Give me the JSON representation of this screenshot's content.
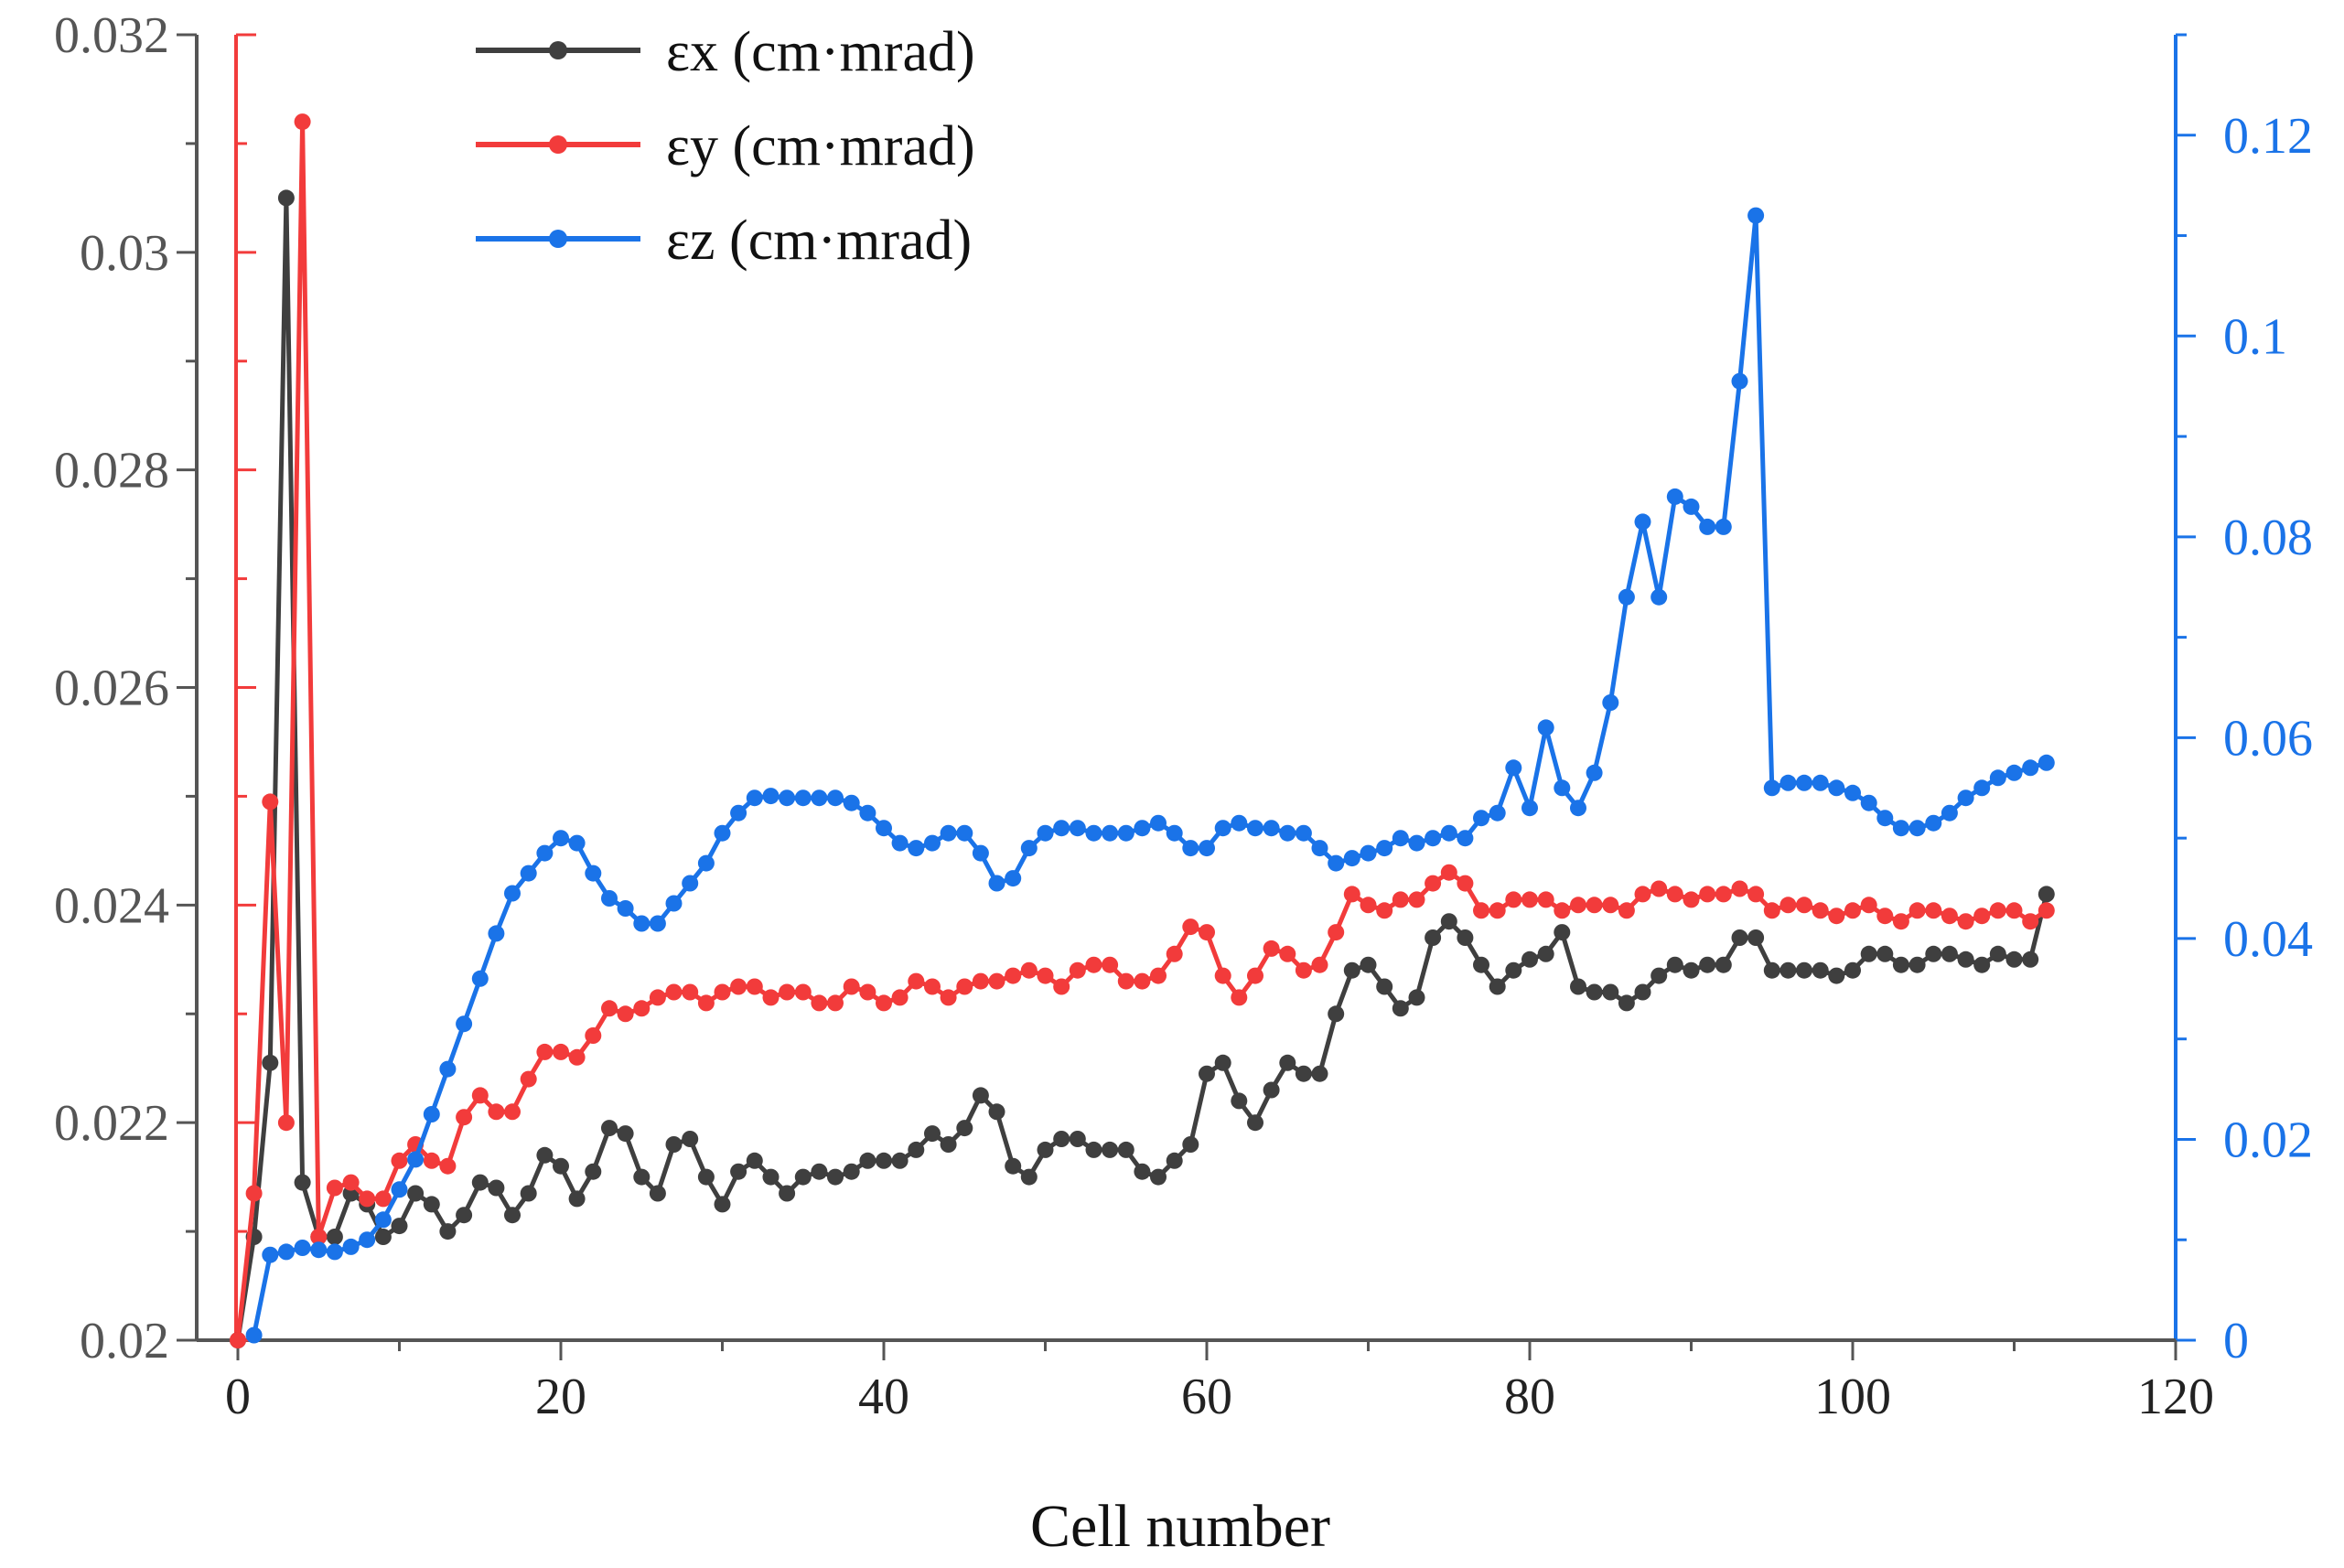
{
  "chart_data": {
    "type": "line",
    "xlabel": "Cell number",
    "xlim": [
      0,
      120
    ],
    "ylim_left": [
      0.02,
      0.032
    ],
    "ylim_right": [
      0,
      0.13
    ],
    "x_ticks": [
      "0",
      "20",
      "40",
      "60",
      "80",
      "100",
      "120"
    ],
    "y_left_ticks": [
      "0.02",
      "0.022",
      "0.024",
      "0.026",
      "0.028",
      "0.03",
      "0.032"
    ],
    "y_right_ticks": [
      "0",
      "0.02",
      "0.04",
      "0.06",
      "0.08",
      "0.1",
      "0.12"
    ],
    "legend_position": "top-left",
    "colors": {
      "ex": "#3f3f3f",
      "ey": "#f23b3b",
      "ez": "#1a73e8",
      "left_axis": "#f23b3b",
      "right_axis": "#1a73e8",
      "frame": "#555555"
    },
    "series": [
      {
        "key": "ex",
        "name": "εx (cm·mrad)",
        "axis": "left",
        "x": [
          0,
          1,
          2,
          3,
          4,
          5,
          6,
          7,
          8,
          9,
          10,
          11,
          12,
          13,
          14,
          15,
          16,
          17,
          18,
          19,
          20,
          21,
          22,
          23,
          24,
          25,
          26,
          27,
          28,
          29,
          30,
          31,
          32,
          33,
          34,
          35,
          36,
          37,
          38,
          39,
          40,
          41,
          42,
          43,
          44,
          45,
          46,
          47,
          48,
          49,
          50,
          51,
          52,
          53,
          54,
          55,
          56,
          57,
          58,
          59,
          60,
          61,
          62,
          63,
          64,
          65,
          66,
          67,
          68,
          69,
          70,
          71,
          72,
          73,
          74,
          75,
          76,
          77,
          78,
          79,
          80,
          81,
          82,
          83,
          84,
          85,
          86,
          87,
          88,
          89,
          90,
          91,
          92,
          93,
          94,
          95,
          96,
          97,
          98,
          99,
          100,
          101,
          102,
          103,
          104,
          105,
          106,
          107,
          108,
          109,
          110,
          111,
          112
        ],
        "values": [
          0.02,
          0.02095,
          0.02255,
          0.0305,
          0.02145,
          0.02095,
          0.02095,
          0.02135,
          0.02125,
          0.02095,
          0.02105,
          0.02135,
          0.02125,
          0.021,
          0.02115,
          0.02145,
          0.0214,
          0.02115,
          0.02135,
          0.0217,
          0.0216,
          0.0213,
          0.02155,
          0.02195,
          0.0219,
          0.0215,
          0.02135,
          0.0218,
          0.02185,
          0.0215,
          0.02125,
          0.02155,
          0.02165,
          0.0215,
          0.02135,
          0.0215,
          0.02155,
          0.0215,
          0.02155,
          0.02165,
          0.02165,
          0.02165,
          0.02175,
          0.0219,
          0.0218,
          0.02195,
          0.02225,
          0.0221,
          0.0216,
          0.0215,
          0.02175,
          0.02185,
          0.02185,
          0.02175,
          0.02175,
          0.02175,
          0.02155,
          0.0215,
          0.02165,
          0.0218,
          0.02245,
          0.02255,
          0.0222,
          0.022,
          0.0223,
          0.02255,
          0.02245,
          0.02245,
          0.023,
          0.0234,
          0.02345,
          0.02325,
          0.02305,
          0.02315,
          0.0237,
          0.02385,
          0.0237,
          0.02345,
          0.02325,
          0.0234,
          0.0235,
          0.02355,
          0.02375,
          0.02325,
          0.0232,
          0.0232,
          0.0231,
          0.0232,
          0.02335,
          0.02345,
          0.0234,
          0.02345,
          0.02345,
          0.0237,
          0.0237,
          0.0234,
          0.0234,
          0.0234,
          0.0234,
          0.02335,
          0.0234,
          0.02355,
          0.02355,
          0.02345,
          0.02345,
          0.02355,
          0.02355,
          0.0235,
          0.02345,
          0.02355,
          0.0235,
          0.0235,
          0.0241
        ]
      },
      {
        "key": "ey",
        "name": "εy (cm·mrad)",
        "axis": "left",
        "x": [
          0,
          1,
          2,
          3,
          4,
          5,
          6,
          7,
          8,
          9,
          10,
          11,
          12,
          13,
          14,
          15,
          16,
          17,
          18,
          19,
          20,
          21,
          22,
          23,
          24,
          25,
          26,
          27,
          28,
          29,
          30,
          31,
          32,
          33,
          34,
          35,
          36,
          37,
          38,
          39,
          40,
          41,
          42,
          43,
          44,
          45,
          46,
          47,
          48,
          49,
          50,
          51,
          52,
          53,
          54,
          55,
          56,
          57,
          58,
          59,
          60,
          61,
          62,
          63,
          64,
          65,
          66,
          67,
          68,
          69,
          70,
          71,
          72,
          73,
          74,
          75,
          76,
          77,
          78,
          79,
          80,
          81,
          82,
          83,
          84,
          85,
          86,
          87,
          88,
          89,
          90,
          91,
          92,
          93,
          94,
          95,
          96,
          97,
          98,
          99,
          100,
          101,
          102,
          103,
          104,
          105,
          106,
          107,
          108,
          109,
          110,
          111,
          112
        ],
        "values": [
          0.02,
          0.02135,
          0.02495,
          0.022,
          0.0312,
          0.02095,
          0.0214,
          0.02145,
          0.0213,
          0.0213,
          0.02165,
          0.0218,
          0.02165,
          0.0216,
          0.02205,
          0.02225,
          0.0221,
          0.0221,
          0.0224,
          0.02265,
          0.02265,
          0.0226,
          0.0228,
          0.02305,
          0.023,
          0.02305,
          0.02315,
          0.0232,
          0.0232,
          0.0231,
          0.0232,
          0.02325,
          0.02325,
          0.02315,
          0.0232,
          0.0232,
          0.0231,
          0.0231,
          0.02325,
          0.0232,
          0.0231,
          0.02315,
          0.0233,
          0.02325,
          0.02315,
          0.02325,
          0.0233,
          0.0233,
          0.02335,
          0.0234,
          0.02335,
          0.02325,
          0.0234,
          0.02345,
          0.02345,
          0.0233,
          0.0233,
          0.02335,
          0.02355,
          0.0238,
          0.02375,
          0.02335,
          0.02315,
          0.02335,
          0.0236,
          0.02355,
          0.0234,
          0.02345,
          0.02375,
          0.0241,
          0.024,
          0.02395,
          0.02405,
          0.02405,
          0.0242,
          0.0243,
          0.0242,
          0.02395,
          0.02395,
          0.02405,
          0.02405,
          0.02405,
          0.02395,
          0.024,
          0.024,
          0.024,
          0.02395,
          0.0241,
          0.02415,
          0.0241,
          0.02405,
          0.0241,
          0.0241,
          0.02415,
          0.0241,
          0.02395,
          0.024,
          0.024,
          0.02395,
          0.0239,
          0.02395,
          0.024,
          0.0239,
          0.02385,
          0.02395,
          0.02395,
          0.0239,
          0.02385,
          0.0239,
          0.02395,
          0.02395,
          0.02385,
          0.02395
        ]
      },
      {
        "key": "ez",
        "name": "εz (cm·mrad)",
        "axis": "right",
        "x": [
          1,
          2,
          3,
          4,
          5,
          6,
          7,
          8,
          9,
          10,
          11,
          12,
          13,
          14,
          15,
          16,
          17,
          18,
          19,
          20,
          21,
          22,
          23,
          24,
          25,
          26,
          27,
          28,
          29,
          30,
          31,
          32,
          33,
          34,
          35,
          36,
          37,
          38,
          39,
          40,
          41,
          42,
          43,
          44,
          45,
          46,
          47,
          48,
          49,
          50,
          51,
          52,
          53,
          54,
          55,
          56,
          57,
          58,
          59,
          60,
          61,
          62,
          63,
          64,
          65,
          66,
          67,
          68,
          69,
          70,
          71,
          72,
          73,
          74,
          75,
          76,
          77,
          78,
          79,
          80,
          81,
          82,
          83,
          84,
          85,
          86,
          87,
          88,
          89,
          90,
          91,
          92,
          93,
          94,
          95,
          96,
          97,
          98,
          99,
          100,
          101,
          102,
          103,
          104,
          105,
          106,
          107,
          108,
          109,
          110,
          111,
          112
        ],
        "values": [
          0.0005,
          0.0085,
          0.0088,
          0.0092,
          0.009,
          0.0088,
          0.0093,
          0.01,
          0.012,
          0.015,
          0.018,
          0.0225,
          0.027,
          0.0315,
          0.036,
          0.0405,
          0.0445,
          0.0465,
          0.0485,
          0.05,
          0.0495,
          0.0465,
          0.044,
          0.043,
          0.0415,
          0.0415,
          0.0435,
          0.0455,
          0.0475,
          0.0505,
          0.0525,
          0.054,
          0.0542,
          0.054,
          0.054,
          0.054,
          0.054,
          0.0535,
          0.0525,
          0.051,
          0.0495,
          0.049,
          0.0495,
          0.0505,
          0.0505,
          0.0485,
          0.0455,
          0.046,
          0.049,
          0.0505,
          0.051,
          0.051,
          0.0505,
          0.0505,
          0.0505,
          0.051,
          0.0515,
          0.0505,
          0.049,
          0.049,
          0.051,
          0.0515,
          0.051,
          0.051,
          0.0505,
          0.0505,
          0.049,
          0.0475,
          0.048,
          0.0485,
          0.049,
          0.05,
          0.0495,
          0.05,
          0.0505,
          0.05,
          0.052,
          0.0525,
          0.057,
          0.053,
          0.061,
          0.055,
          0.053,
          0.0565,
          0.0635,
          0.074,
          0.0815,
          0.074,
          0.084,
          0.083,
          0.081,
          0.081,
          0.0955,
          0.112,
          0.055,
          0.0555,
          0.0555,
          0.0555,
          0.055,
          0.0545,
          0.0535,
          0.052,
          0.051,
          0.051,
          0.0515,
          0.0525,
          0.054,
          0.055,
          0.056,
          0.0565,
          0.057,
          0.0575
        ]
      }
    ]
  }
}
